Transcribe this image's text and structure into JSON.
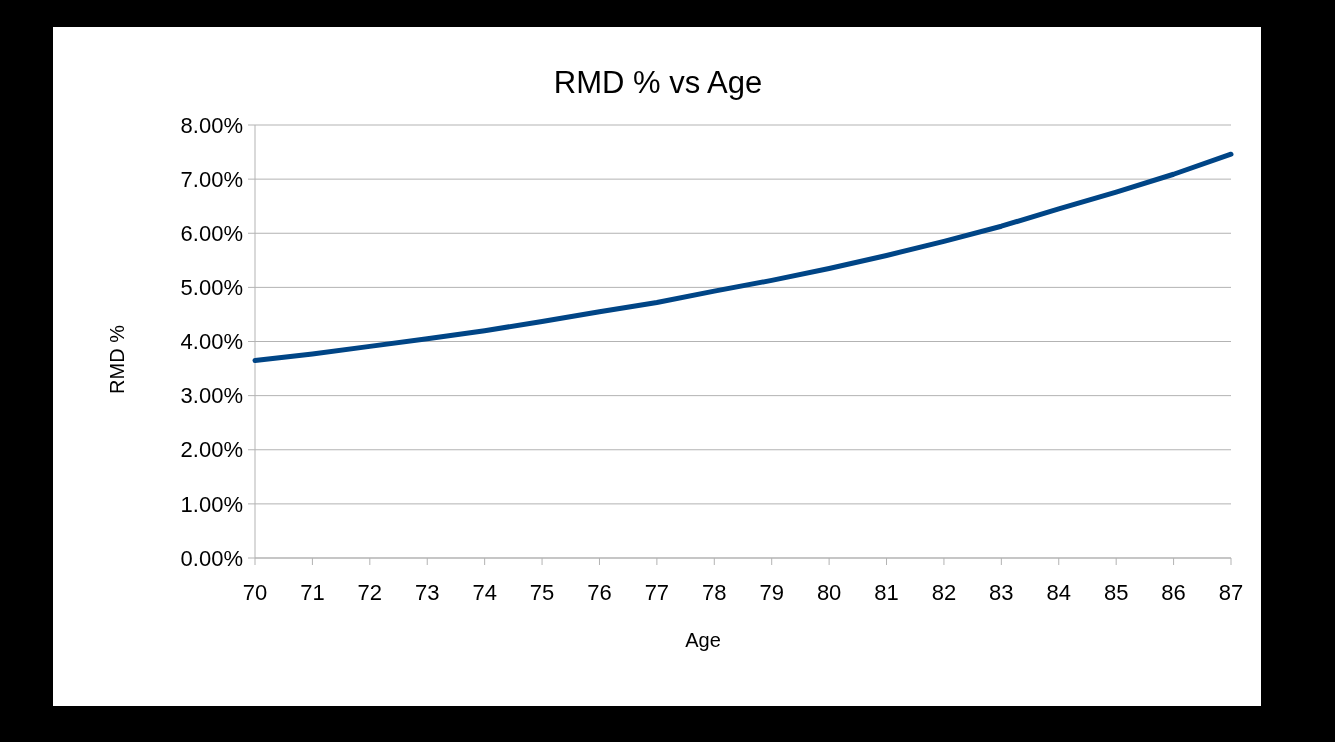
{
  "chart_data": {
    "type": "line",
    "title": "RMD % vs Age",
    "xlabel": "Age",
    "ylabel": "RMD %",
    "x": [
      70,
      71,
      72,
      73,
      74,
      75,
      76,
      77,
      78,
      79,
      80,
      81,
      82,
      83,
      84,
      85,
      86,
      87
    ],
    "series": [
      {
        "color": "#004586",
        "values": [
          3.65,
          3.77,
          3.91,
          4.05,
          4.2,
          4.37,
          4.55,
          4.72,
          4.93,
          5.13,
          5.35,
          5.59,
          5.85,
          6.13,
          6.45,
          6.76,
          7.09,
          7.46
        ]
      }
    ],
    "xlim": [
      70,
      87
    ],
    "xticks": [
      70,
      71,
      72,
      73,
      74,
      75,
      76,
      77,
      78,
      79,
      80,
      81,
      82,
      83,
      84,
      85,
      86,
      87
    ],
    "ylim": [
      0,
      8
    ],
    "yticks": [
      {
        "value": 0,
        "label": "0.00%"
      },
      {
        "value": 1,
        "label": "1.00%"
      },
      {
        "value": 2,
        "label": "2.00%"
      },
      {
        "value": 3,
        "label": "3.00%"
      },
      {
        "value": 4,
        "label": "4.00%"
      },
      {
        "value": 5,
        "label": "5.00%"
      },
      {
        "value": 6,
        "label": "6.00%"
      },
      {
        "value": 7,
        "label": "7.00%"
      },
      {
        "value": 8,
        "label": "8.00%"
      }
    ],
    "grid": "y",
    "marker": "none",
    "line_style": "solid"
  }
}
